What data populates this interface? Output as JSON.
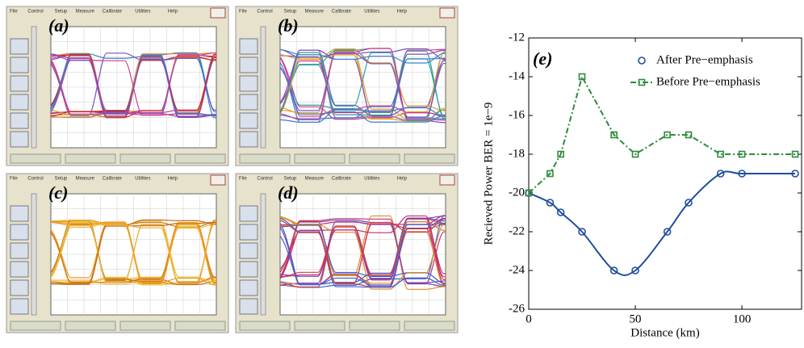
{
  "scope_menu": [
    "File",
    "Control",
    "Setup",
    "Measure",
    "Calibrate",
    "Utilities",
    "Help"
  ],
  "panels": [
    {
      "label": "(a)"
    },
    {
      "label": "(b)"
    },
    {
      "label": "(c)"
    },
    {
      "label": "(d)"
    }
  ],
  "chart_data": {
    "type": "line",
    "annotation": "(e)",
    "x_label": "Distance (km)",
    "y_label": "Recieved Power BER = 1e−9",
    "xlim": [
      0,
      128
    ],
    "xticks": [
      0,
      50,
      100
    ],
    "ylim": [
      -26,
      -12
    ],
    "yticks": [
      -26,
      -24,
      -22,
      -20,
      -18,
      -16,
      -14,
      -12
    ],
    "legend": "upper right",
    "series": [
      {
        "name": "After Pre−emphasis",
        "color": "#1f4e9e",
        "style": "smooth-circle",
        "x": [
          0,
          10,
          15,
          25,
          40,
          50,
          65,
          75,
          90,
          100,
          125
        ],
        "values": [
          -20,
          -20.5,
          -21,
          -22,
          -24,
          -24,
          -22,
          -20.5,
          -19,
          -19,
          -19
        ]
      },
      {
        "name": "Before Pre−emphasis",
        "color": "#2e8b3a",
        "style": "dashdot-square",
        "x": [
          0,
          10,
          15,
          25,
          40,
          50,
          65,
          75,
          90,
          100,
          125
        ],
        "values": [
          -20,
          -19,
          -18,
          -14,
          -17,
          -18,
          -17,
          -17,
          -18,
          -18,
          -18
        ]
      }
    ]
  }
}
